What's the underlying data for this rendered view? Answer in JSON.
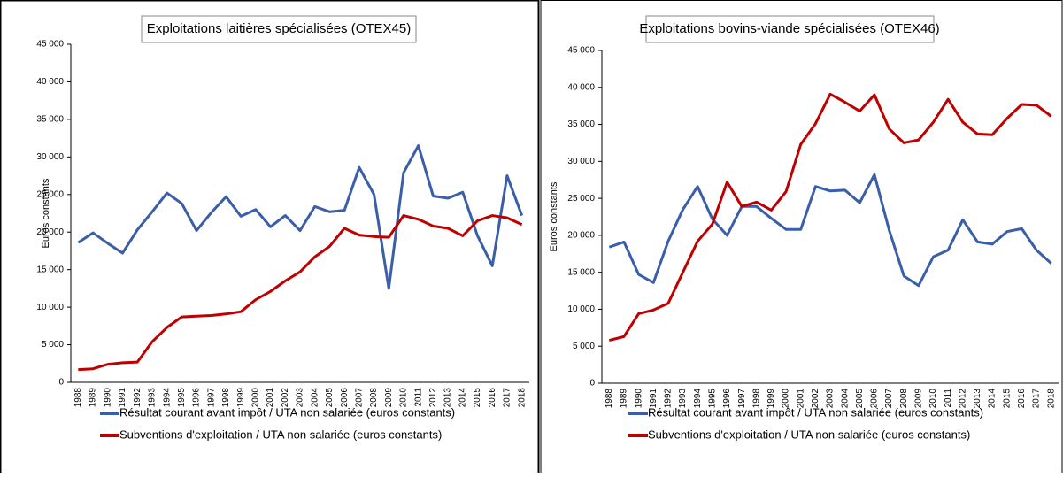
{
  "chart_data": [
    {
      "type": "line",
      "title": "Exploitations laitières spécialisées (OTEX45)",
      "y_label": "Euros constants",
      "categories": [
        "1988",
        "1989",
        "1990",
        "1991",
        "1992",
        "1993",
        "1994",
        "1995",
        "1996",
        "1997",
        "1998",
        "1999",
        "2000",
        "2001",
        "2002",
        "2003",
        "2004",
        "2005",
        "2006",
        "2007",
        "2008",
        "2009",
        "2010",
        "2011",
        "2012",
        "2013",
        "2014",
        "2015",
        "2016",
        "2017",
        "2018"
      ],
      "series": [
        {
          "name": "Résultat courant avant impôt / UTA non salariée (euros constants)",
          "color": "#3a5ea8",
          "values": [
            18600,
            19900,
            18500,
            17200,
            20300,
            22700,
            25200,
            23800,
            20200,
            22600,
            24700,
            22100,
            23000,
            20700,
            22200,
            20200,
            23400,
            22700,
            22900,
            28600,
            25000,
            12500,
            27900,
            31500,
            24800,
            24500,
            25300,
            19500,
            15500,
            27500,
            22200
          ]
        },
        {
          "name": "Subventions d'exploitation / UTA non salariée (euros constants)",
          "color": "#c00000",
          "values": [
            1700,
            1800,
            2400,
            2600,
            2700,
            5400,
            7300,
            8700,
            8800,
            8900,
            9100,
            9400,
            11000,
            12100,
            13500,
            14700,
            16700,
            18100,
            20500,
            19600,
            19400,
            19300,
            22200,
            21700,
            20800,
            20500,
            19500,
            21500,
            22200,
            21900,
            21000
          ]
        }
      ],
      "ylim": [
        0,
        45000
      ],
      "yticks": [
        0,
        {
          "value": 5000,
          "label": "5 000"
        },
        {
          "value": 10000,
          "label": "10 000"
        },
        {
          "value": 15000,
          "label": "15 000"
        },
        {
          "value": 20000,
          "label": "20 000"
        },
        {
          "value": 25000,
          "label": "25 000"
        },
        {
          "value": 30000,
          "label": "30 000"
        },
        {
          "value": 35000,
          "label": "35 000"
        },
        {
          "value": 40000,
          "label": "40 000"
        },
        {
          "value": 45000,
          "label": "45 000"
        }
      ]
    },
    {
      "type": "line",
      "title": "Exploitations bovins-viande spécialisées (OTEX46)",
      "y_label": "Euros constants",
      "categories": [
        "1988",
        "1989",
        "1990",
        "1991",
        "1992",
        "1993",
        "1994",
        "1995",
        "1996",
        "1997",
        "1998",
        "1999",
        "2000",
        "2001",
        "2002",
        "2003",
        "2004",
        "2005",
        "2006",
        "2007",
        "2008",
        "2009",
        "2010",
        "2011",
        "2012",
        "2013",
        "2014",
        "2015",
        "2016",
        "2017",
        "2018"
      ],
      "series": [
        {
          "name": "Résultat courant avant impôt / UTA non salariée (euros constants)",
          "color": "#3a5ea8",
          "values": [
            18400,
            19100,
            14700,
            13600,
            19200,
            23500,
            26600,
            22200,
            20000,
            23900,
            23900,
            22300,
            20800,
            20800,
            26600,
            26000,
            26100,
            24400,
            28200,
            20700,
            14500,
            13200,
            17100,
            18000,
            22100,
            19100,
            18800,
            20500,
            20900,
            18000,
            16200
          ]
        },
        {
          "name": "Subventions d'exploitation / UTA non salariée (euros constants)",
          "color": "#c00000",
          "values": [
            5800,
            6300,
            9400,
            9900,
            10800,
            15000,
            19200,
            21500,
            27200,
            23900,
            24500,
            23400,
            25900,
            32300,
            35100,
            39100,
            38000,
            36800,
            39000,
            34400,
            32500,
            32900,
            35300,
            38400,
            35300,
            33700,
            33600,
            35800,
            37700,
            37600,
            36100
          ]
        }
      ],
      "ylim": [
        0,
        45000
      ],
      "yticks": [
        0,
        {
          "value": 5000,
          "label": "5 000"
        },
        {
          "value": 10000,
          "label": "10 000"
        },
        {
          "value": 15000,
          "label": "15 000"
        },
        {
          "value": 20000,
          "label": "20 000"
        },
        {
          "value": 25000,
          "label": "25 000"
        },
        {
          "value": 30000,
          "label": "30 000"
        },
        {
          "value": 35000,
          "label": "35 000"
        },
        {
          "value": 40000,
          "label": "40 000"
        },
        {
          "value": 45000,
          "label": "45 000"
        }
      ]
    }
  ]
}
